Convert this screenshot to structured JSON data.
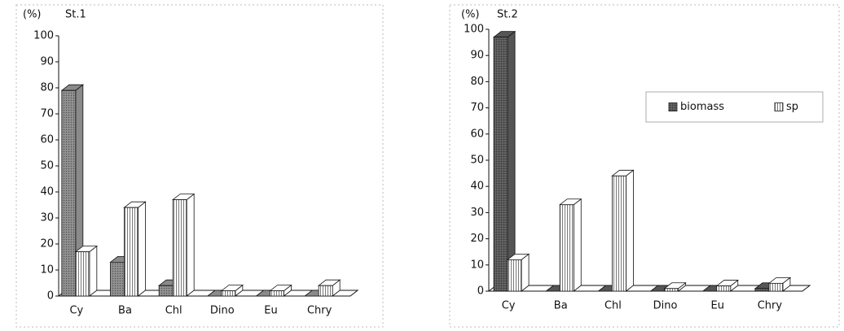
{
  "chart_data": [
    {
      "type": "bar3d",
      "title": "St.1",
      "ylabel": "(%)",
      "categories": [
        "Cy",
        "Ba",
        "Chl",
        "Dino",
        "Eu",
        "Chry"
      ],
      "series": [
        {
          "color": "#8a8a8a",
          "values": [
            79,
            13,
            4,
            0,
            0,
            0
          ]
        },
        {
          "color": "#ffffff",
          "values": [
            17,
            34,
            37,
            2,
            2,
            4
          ]
        }
      ],
      "ylim": [
        0,
        100
      ],
      "yticks": [
        0,
        10,
        20,
        30,
        40,
        50,
        60,
        70,
        80,
        90,
        100
      ]
    },
    {
      "type": "bar3d",
      "title": "St.2",
      "ylabel": "(%)",
      "categories": [
        "Cy",
        "Ba",
        "Chl",
        "Dino",
        "Eu",
        "Chry"
      ],
      "series": [
        {
          "name": "biomass",
          "color": "#555555",
          "values": [
            97,
            0,
            0,
            0,
            0,
            1
          ]
        },
        {
          "name": "sp",
          "color": "#ffffff",
          "values": [
            12,
            33,
            44,
            1,
            2,
            3
          ]
        }
      ],
      "ylim": [
        0,
        100
      ],
      "yticks": [
        0,
        10,
        20,
        30,
        40,
        50,
        60,
        70,
        80,
        90,
        100
      ],
      "legend": "upper right"
    }
  ]
}
